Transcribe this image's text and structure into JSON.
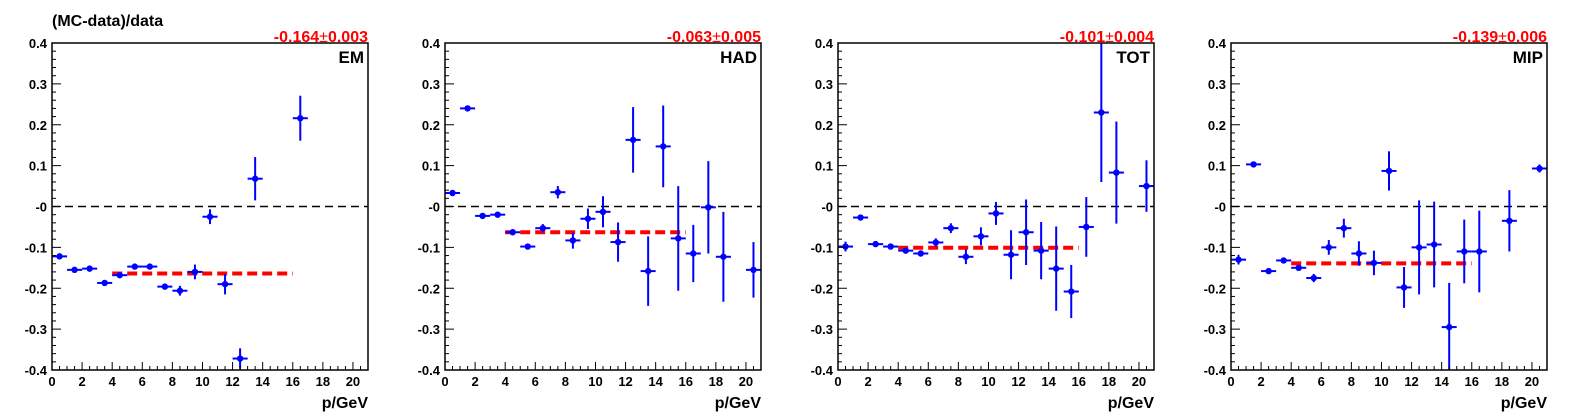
{
  "figure": {
    "ylabel": "(MC-data)/data"
  },
  "chart_data": [
    {
      "type": "scatter",
      "label": "EM",
      "fit_value": "-0.164",
      "fit_error": "0.003",
      "xlabel": "p/GeV",
      "xlim": [
        0,
        21
      ],
      "ylim": [
        -0.4,
        0.4
      ],
      "xticks": [
        "0",
        "2",
        "4",
        "6",
        "8",
        "10",
        "12",
        "14",
        "16",
        "18",
        "20"
      ],
      "yticks": [
        "-0.4",
        "-0.3",
        "-0.2",
        "-0.1",
        "-0",
        "0.1",
        "0.2",
        "0.3",
        "0.4"
      ],
      "fit_range": [
        4,
        16
      ],
      "fit_level": -0.164,
      "fit_color": "#ff0000",
      "point_color": "#0000ff",
      "points": [
        {
          "x": 0.5,
          "y": -0.122,
          "err": 0.006
        },
        {
          "x": 1.5,
          "y": -0.155,
          "err": 0.005
        },
        {
          "x": 2.5,
          "y": -0.152,
          "err": 0.005
        },
        {
          "x": 3.5,
          "y": -0.187,
          "err": 0.006
        },
        {
          "x": 4.5,
          "y": -0.168,
          "err": 0.006
        },
        {
          "x": 5.5,
          "y": -0.147,
          "err": 0.006
        },
        {
          "x": 6.5,
          "y": -0.147,
          "err": 0.006
        },
        {
          "x": 7.5,
          "y": -0.196,
          "err": 0.007
        },
        {
          "x": 8.5,
          "y": -0.206,
          "err": 0.012
        },
        {
          "x": 9.5,
          "y": -0.16,
          "err": 0.018
        },
        {
          "x": 10.5,
          "y": -0.025,
          "err": 0.018
        },
        {
          "x": 11.5,
          "y": -0.19,
          "err": 0.025
        },
        {
          "x": 12.5,
          "y": -0.372,
          "err": 0.025
        },
        {
          "x": 13.5,
          "y": 0.068,
          "err": 0.053
        },
        {
          "x": 16.5,
          "y": 0.216,
          "err": 0.055
        }
      ]
    },
    {
      "type": "scatter",
      "label": "HAD",
      "fit_value": "-0.063",
      "fit_error": "0.005",
      "xlabel": "p/GeV",
      "xlim": [
        0,
        21
      ],
      "ylim": [
        -0.4,
        0.4
      ],
      "xticks": [
        "0",
        "2",
        "4",
        "6",
        "8",
        "10",
        "12",
        "14",
        "16",
        "18",
        "20"
      ],
      "yticks": [
        "-0.4",
        "-0.3",
        "-0.2",
        "-0.1",
        "-0",
        "0.1",
        "0.2",
        "0.3",
        "0.4"
      ],
      "fit_range": [
        4,
        16
      ],
      "fit_level": -0.063,
      "fit_color": "#ff0000",
      "point_color": "#0000ff",
      "points": [
        {
          "x": 0.5,
          "y": 0.033,
          "err": 0.007
        },
        {
          "x": 1.5,
          "y": 0.24,
          "err": 0.004
        },
        {
          "x": 2.5,
          "y": -0.023,
          "err": 0.004
        },
        {
          "x": 3.5,
          "y": -0.02,
          "err": 0.004
        },
        {
          "x": 4.5,
          "y": -0.063,
          "err": 0.005
        },
        {
          "x": 5.5,
          "y": -0.098,
          "err": 0.005
        },
        {
          "x": 6.5,
          "y": -0.053,
          "err": 0.01
        },
        {
          "x": 7.5,
          "y": 0.035,
          "err": 0.015
        },
        {
          "x": 8.5,
          "y": -0.083,
          "err": 0.02
        },
        {
          "x": 9.5,
          "y": -0.03,
          "err": 0.025
        },
        {
          "x": 10.5,
          "y": -0.013,
          "err": 0.038
        },
        {
          "x": 11.5,
          "y": -0.087,
          "err": 0.048
        },
        {
          "x": 12.5,
          "y": 0.163,
          "err": 0.08
        },
        {
          "x": 13.5,
          "y": -0.158,
          "err": 0.085
        },
        {
          "x": 14.5,
          "y": 0.147,
          "err": 0.1
        },
        {
          "x": 15.5,
          "y": -0.078,
          "err": 0.128
        },
        {
          "x": 16.5,
          "y": -0.115,
          "err": 0.07
        },
        {
          "x": 17.5,
          "y": -0.002,
          "err": 0.113
        },
        {
          "x": 18.5,
          "y": -0.123,
          "err": 0.11
        },
        {
          "x": 20.5,
          "y": -0.155,
          "err": 0.068
        }
      ]
    },
    {
      "type": "scatter",
      "label": "TOT",
      "fit_value": "-0.101",
      "fit_error": "0.004",
      "xlabel": "p/GeV",
      "xlim": [
        0,
        21
      ],
      "ylim": [
        -0.4,
        0.4
      ],
      "xticks": [
        "0",
        "2",
        "4",
        "6",
        "8",
        "10",
        "12",
        "14",
        "16",
        "18",
        "20"
      ],
      "yticks": [
        "-0.4",
        "-0.3",
        "-0.2",
        "-0.1",
        "-0",
        "0.1",
        "0.2",
        "0.3",
        "0.4"
      ],
      "fit_range": [
        4,
        16
      ],
      "fit_level": -0.101,
      "fit_color": "#ff0000",
      "point_color": "#0000ff",
      "points": [
        {
          "x": 0.5,
          "y": -0.098,
          "err": 0.012
        },
        {
          "x": 1.5,
          "y": -0.027,
          "err": 0.005
        },
        {
          "x": 2.5,
          "y": -0.092,
          "err": 0.005
        },
        {
          "x": 3.5,
          "y": -0.098,
          "err": 0.005
        },
        {
          "x": 4.5,
          "y": -0.108,
          "err": 0.005
        },
        {
          "x": 5.5,
          "y": -0.115,
          "err": 0.005
        },
        {
          "x": 6.5,
          "y": -0.088,
          "err": 0.01
        },
        {
          "x": 7.5,
          "y": -0.053,
          "err": 0.012
        },
        {
          "x": 8.5,
          "y": -0.123,
          "err": 0.018
        },
        {
          "x": 9.5,
          "y": -0.073,
          "err": 0.022
        },
        {
          "x": 10.5,
          "y": -0.017,
          "err": 0.028
        },
        {
          "x": 11.5,
          "y": -0.118,
          "err": 0.06
        },
        {
          "x": 12.5,
          "y": -0.063,
          "err": 0.08
        },
        {
          "x": 13.5,
          "y": -0.108,
          "err": 0.07
        },
        {
          "x": 14.5,
          "y": -0.152,
          "err": 0.103
        },
        {
          "x": 15.5,
          "y": -0.208,
          "err": 0.065
        },
        {
          "x": 16.5,
          "y": -0.05,
          "err": 0.073
        },
        {
          "x": 17.5,
          "y": 0.23,
          "err": 0.17
        },
        {
          "x": 18.5,
          "y": 0.083,
          "err": 0.125
        },
        {
          "x": 20.5,
          "y": 0.05,
          "err": 0.063
        }
      ]
    },
    {
      "type": "scatter",
      "label": "MIP",
      "fit_value": "-0.139",
      "fit_error": "0.006",
      "xlabel": "p/GeV",
      "xlim": [
        0,
        21
      ],
      "ylim": [
        -0.4,
        0.4
      ],
      "xticks": [
        "0",
        "2",
        "4",
        "6",
        "8",
        "10",
        "12",
        "14",
        "16",
        "18",
        "20"
      ],
      "yticks": [
        "-0.4",
        "-0.3",
        "-0.2",
        "-0.1",
        "-0",
        "0.1",
        "0.2",
        "0.3",
        "0.4"
      ],
      "fit_range": [
        4,
        16
      ],
      "fit_level": -0.139,
      "fit_color": "#ff0000",
      "point_color": "#0000ff",
      "points": [
        {
          "x": 0.5,
          "y": -0.13,
          "err": 0.012
        },
        {
          "x": 1.5,
          "y": 0.103,
          "err": 0.004
        },
        {
          "x": 2.5,
          "y": -0.158,
          "err": 0.005
        },
        {
          "x": 3.5,
          "y": -0.132,
          "err": 0.005
        },
        {
          "x": 4.5,
          "y": -0.15,
          "err": 0.007
        },
        {
          "x": 5.5,
          "y": -0.175,
          "err": 0.01
        },
        {
          "x": 6.5,
          "y": -0.1,
          "err": 0.018
        },
        {
          "x": 7.5,
          "y": -0.053,
          "err": 0.023
        },
        {
          "x": 8.5,
          "y": -0.115,
          "err": 0.03
        },
        {
          "x": 9.5,
          "y": -0.138,
          "err": 0.03
        },
        {
          "x": 10.5,
          "y": 0.087,
          "err": 0.048
        },
        {
          "x": 11.5,
          "y": -0.198,
          "err": 0.05
        },
        {
          "x": 12.5,
          "y": -0.1,
          "err": 0.115
        },
        {
          "x": 13.5,
          "y": -0.093,
          "err": 0.105
        },
        {
          "x": 14.5,
          "y": -0.295,
          "err": 0.108
        },
        {
          "x": 15.5,
          "y": -0.11,
          "err": 0.078
        },
        {
          "x": 16.5,
          "y": -0.11,
          "err": 0.1
        },
        {
          "x": 18.5,
          "y": -0.035,
          "err": 0.075
        },
        {
          "x": 20.5,
          "y": 0.093,
          "err": 0.01
        }
      ]
    }
  ]
}
